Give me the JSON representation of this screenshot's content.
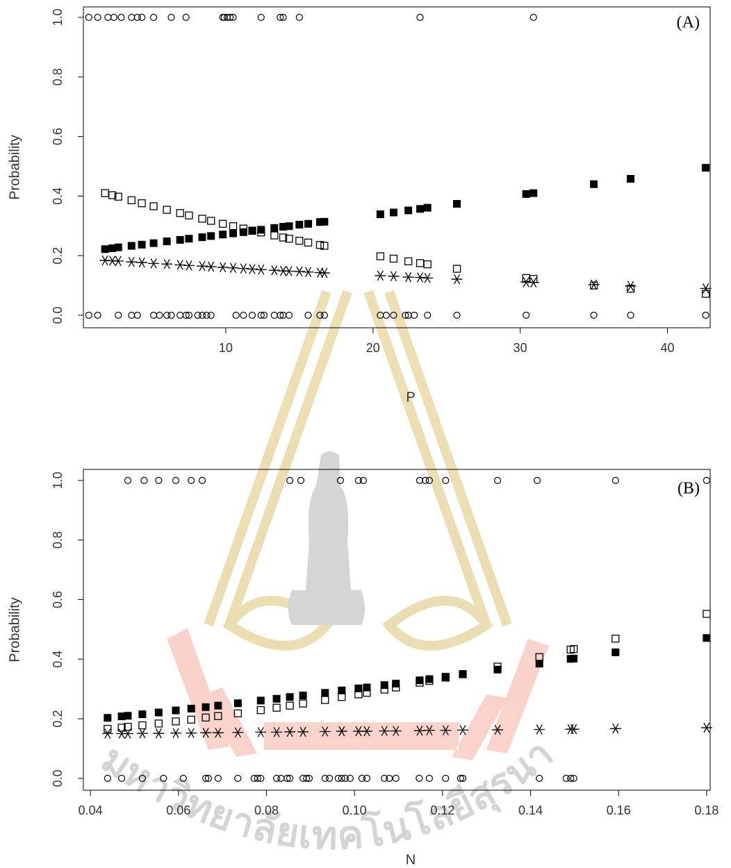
{
  "watermark": "มหาวิทยาลัยเทคโนโลยีสุรนารี",
  "chart_data": [
    {
      "type": "scatter",
      "annotation": "(A)",
      "x_label": "P",
      "y_label": "Probability",
      "xlim": [
        0.33,
        42.9
      ],
      "ylim": [
        -0.042,
        1.035
      ],
      "xticks": [
        10,
        20,
        30,
        40
      ],
      "yticks": [
        {
          "value": 0,
          "label": "0.0"
        },
        0.2,
        0.4,
        0.6,
        0.8,
        {
          "value": 1,
          "label": "1.0"
        }
      ],
      "series": [
        {
          "marker": "circle-open",
          "color": "#000000",
          "x": [
            0.7,
            1.3,
            2.0,
            2.4,
            2.9,
            3.6,
            4.0,
            4.3,
            5.1,
            6.3,
            7.3,
            9.8,
            9.9,
            10.1,
            10.3,
            10.5,
            12.4,
            13.7,
            13.9,
            15.0,
            23.2,
            30.9,
            0.7,
            1.3,
            2.7,
            3.6,
            4.0,
            5.1,
            5.5,
            6.0,
            6.3,
            6.9,
            7.3,
            7.5,
            8.1,
            8.4,
            8.7,
            9.0,
            10.7,
            11.2,
            11.8,
            12.4,
            12.6,
            13.3,
            13.7,
            13.9,
            14.3,
            15.6,
            16.4,
            16.7,
            20.5,
            20.9,
            21.4,
            22.2,
            22.4,
            22.8,
            23.7,
            25.7,
            30.4,
            35.0,
            37.5,
            42.6
          ],
          "values": [
            1,
            1,
            1,
            1,
            1,
            1,
            1,
            1,
            1,
            1,
            1,
            1,
            1,
            1,
            1,
            1,
            1,
            1,
            1,
            1,
            1,
            1,
            0,
            0,
            0,
            0,
            0,
            0,
            0,
            0,
            0,
            0,
            0,
            0,
            0,
            0,
            0,
            0,
            0,
            0,
            0,
            0,
            0,
            0,
            0,
            0,
            0,
            0,
            0,
            0,
            0,
            0,
            0,
            0,
            0,
            0,
            0,
            0,
            0,
            0,
            0,
            0
          ]
        },
        {
          "marker": "square-filled",
          "color": "#000000",
          "x": [
            1.8,
            2.3,
            2.7,
            3.6,
            4.3,
            5.1,
            6.0,
            6.9,
            7.5,
            8.4,
            9.0,
            9.8,
            10.5,
            11.2,
            11.8,
            12.4,
            13.3,
            13.9,
            14.3,
            15.0,
            15.6,
            16.4,
            16.7,
            20.5,
            21.4,
            22.4,
            23.2,
            23.7,
            25.7,
            30.4,
            30.9,
            35.0,
            37.5,
            42.6
          ],
          "values": [
            0.222,
            0.225,
            0.228,
            0.233,
            0.237,
            0.242,
            0.248,
            0.253,
            0.257,
            0.262,
            0.266,
            0.271,
            0.275,
            0.279,
            0.283,
            0.287,
            0.293,
            0.297,
            0.299,
            0.304,
            0.307,
            0.313,
            0.314,
            0.339,
            0.345,
            0.352,
            0.357,
            0.361,
            0.374,
            0.407,
            0.41,
            0.44,
            0.458,
            0.495
          ]
        },
        {
          "marker": "square-open",
          "color": "#000000",
          "x": [
            1.8,
            2.3,
            2.7,
            3.6,
            4.3,
            5.1,
            6.0,
            6.9,
            7.5,
            8.4,
            9.0,
            9.8,
            10.5,
            11.2,
            11.8,
            12.4,
            13.3,
            13.9,
            14.3,
            15.0,
            15.6,
            16.4,
            16.7,
            20.5,
            21.4,
            22.4,
            23.2,
            23.7,
            25.7,
            30.4,
            30.9,
            35.0,
            37.5,
            42.6
          ],
          "values": [
            0.41,
            0.403,
            0.398,
            0.386,
            0.376,
            0.366,
            0.354,
            0.343,
            0.335,
            0.324,
            0.317,
            0.307,
            0.299,
            0.291,
            0.284,
            0.278,
            0.268,
            0.261,
            0.257,
            0.25,
            0.244,
            0.236,
            0.233,
            0.198,
            0.19,
            0.181,
            0.175,
            0.171,
            0.156,
            0.125,
            0.122,
            0.1,
            0.089,
            0.072
          ]
        },
        {
          "marker": "asterisk",
          "color": "#000000",
          "x": [
            1.8,
            2.3,
            2.7,
            3.6,
            4.3,
            5.1,
            6.0,
            6.9,
            7.5,
            8.4,
            9.0,
            9.8,
            10.5,
            11.2,
            11.8,
            12.4,
            13.3,
            13.9,
            14.3,
            15.0,
            15.6,
            16.4,
            16.7,
            20.5,
            21.4,
            22.4,
            23.2,
            23.7,
            25.7,
            30.4,
            30.9,
            35.0,
            37.5,
            42.6
          ],
          "values": [
            0.184,
            0.183,
            0.182,
            0.179,
            0.177,
            0.174,
            0.172,
            0.169,
            0.167,
            0.165,
            0.163,
            0.161,
            0.159,
            0.157,
            0.155,
            0.153,
            0.151,
            0.149,
            0.148,
            0.147,
            0.145,
            0.143,
            0.142,
            0.133,
            0.131,
            0.128,
            0.127,
            0.125,
            0.121,
            0.111,
            0.11,
            0.103,
            0.098,
            0.09
          ]
        }
      ]
    },
    {
      "type": "scatter",
      "annotation": "(B)",
      "x_label": "N",
      "y_label": "Probability",
      "xlim": [
        0.0384,
        0.1808
      ],
      "ylim": [
        -0.04,
        1.037
      ],
      "xticks": [
        0.04,
        0.06,
        0.08,
        {
          "value": 0.1,
          "label": "0.10"
        },
        0.12,
        0.14,
        0.16,
        0.18
      ],
      "yticks": [
        {
          "value": 0,
          "label": "0.0"
        },
        0.2,
        0.4,
        0.6,
        0.8,
        {
          "value": 1,
          "label": "1.0"
        }
      ],
      "series": [
        {
          "marker": "circle-open",
          "color": "#000000",
          "x": [
            0.0485,
            0.0522,
            0.0555,
            0.0594,
            0.0629,
            0.0654,
            0.0853,
            0.0878,
            0.0968,
            0.1009,
            0.102,
            0.1148,
            0.1161,
            0.117,
            0.1207,
            0.1325,
            0.1415,
            0.1593,
            0.18,
            0.0439,
            0.0471,
            0.0518,
            0.0566,
            0.0611,
            0.0662,
            0.0668,
            0.069,
            0.0735,
            0.0772,
            0.078,
            0.0787,
            0.0823,
            0.0833,
            0.0847,
            0.0853,
            0.0883,
            0.0891,
            0.0897,
            0.0933,
            0.0943,
            0.0963,
            0.0971,
            0.0979,
            0.099,
            0.1017,
            0.1028,
            0.1068,
            0.1079,
            0.1094,
            0.1147,
            0.117,
            0.1207,
            0.1241,
            0.1246,
            0.142,
            0.1481,
            0.1491,
            0.1498
          ],
          "values": [
            1,
            1,
            1,
            1,
            1,
            1,
            1,
            1,
            1,
            1,
            1,
            1,
            1,
            1,
            1,
            1,
            1,
            1,
            1,
            0,
            0,
            0,
            0,
            0,
            0,
            0,
            0,
            0,
            0,
            0,
            0,
            0,
            0,
            0,
            0,
            0,
            0,
            0,
            0,
            0,
            0,
            0,
            0,
            0,
            0,
            0,
            0,
            0,
            0,
            0,
            0,
            0,
            0,
            0,
            0,
            0,
            0,
            0
          ]
        },
        {
          "marker": "square-filled",
          "color": "#000000",
          "x": [
            0.0439,
            0.0471,
            0.0485,
            0.0518,
            0.0555,
            0.0594,
            0.0629,
            0.0662,
            0.069,
            0.0735,
            0.0787,
            0.0823,
            0.0853,
            0.0883,
            0.0933,
            0.0971,
            0.1009,
            0.1028,
            0.1068,
            0.1094,
            0.1148,
            0.117,
            0.1207,
            0.1246,
            0.1325,
            0.142,
            0.1491,
            0.1498,
            0.1593,
            0.18
          ],
          "values": [
            0.203,
            0.208,
            0.21,
            0.215,
            0.221,
            0.228,
            0.234,
            0.239,
            0.244,
            0.252,
            0.261,
            0.267,
            0.273,
            0.278,
            0.287,
            0.295,
            0.302,
            0.305,
            0.313,
            0.318,
            0.329,
            0.333,
            0.341,
            0.349,
            0.365,
            0.385,
            0.401,
            0.402,
            0.423,
            0.471
          ]
        },
        {
          "marker": "square-open",
          "color": "#000000",
          "x": [
            0.0439,
            0.0471,
            0.0485,
            0.0518,
            0.0555,
            0.0594,
            0.0629,
            0.0662,
            0.069,
            0.0735,
            0.0787,
            0.0823,
            0.0853,
            0.0883,
            0.0933,
            0.0971,
            0.1009,
            0.1028,
            0.1068,
            0.1094,
            0.1148,
            0.117,
            0.1207,
            0.1246,
            0.1325,
            0.142,
            0.1491,
            0.1498,
            0.1593,
            0.18
          ],
          "values": [
            0.166,
            0.17,
            0.173,
            0.178,
            0.184,
            0.191,
            0.197,
            0.204,
            0.209,
            0.218,
            0.229,
            0.237,
            0.244,
            0.251,
            0.263,
            0.273,
            0.282,
            0.287,
            0.298,
            0.305,
            0.321,
            0.327,
            0.338,
            0.35,
            0.375,
            0.407,
            0.432,
            0.434,
            0.469,
            0.552
          ]
        },
        {
          "marker": "asterisk",
          "color": "#000000",
          "x": [
            0.0439,
            0.0471,
            0.0485,
            0.0518,
            0.0555,
            0.0594,
            0.0629,
            0.0662,
            0.069,
            0.0735,
            0.0787,
            0.0823,
            0.0853,
            0.0883,
            0.0933,
            0.0971,
            0.1009,
            0.1028,
            0.1068,
            0.1094,
            0.1148,
            0.117,
            0.1207,
            0.1246,
            0.1325,
            0.142,
            0.1491,
            0.1498,
            0.1593,
            0.18
          ],
          "values": [
            0.15,
            0.15,
            0.15,
            0.151,
            0.151,
            0.152,
            0.152,
            0.153,
            0.153,
            0.154,
            0.155,
            0.155,
            0.156,
            0.156,
            0.157,
            0.158,
            0.158,
            0.158,
            0.159,
            0.159,
            0.16,
            0.161,
            0.161,
            0.162,
            0.163,
            0.164,
            0.165,
            0.165,
            0.167,
            0.17
          ]
        }
      ]
    }
  ]
}
